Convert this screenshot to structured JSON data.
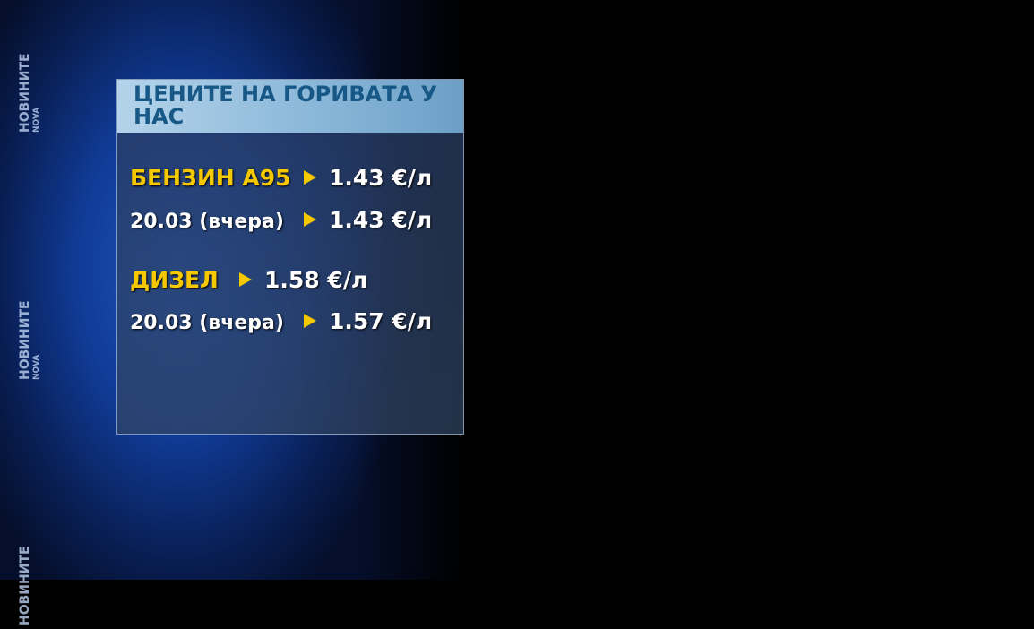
{
  "watermark": {
    "line1": "НОВИНИТЕ",
    "line2": "NOVA"
  },
  "panel": {
    "title": "ЦЕНИТЕ НА ГОРИВАТА У НАС",
    "rows": [
      {
        "label": "БЕНЗИН А95",
        "value": "1.43 €/л"
      },
      {
        "label": "20.03 (вчера)",
        "value": "1.43 €/л"
      },
      {
        "label": "ДИЗЕЛ",
        "value": "1.58 €/л"
      },
      {
        "label": "20.03 (вчера)",
        "value": "1.57 €/л"
      }
    ]
  },
  "colors": {
    "highlight": "#f5c800",
    "title": "#175886",
    "header_bg": "#a9cde6"
  }
}
